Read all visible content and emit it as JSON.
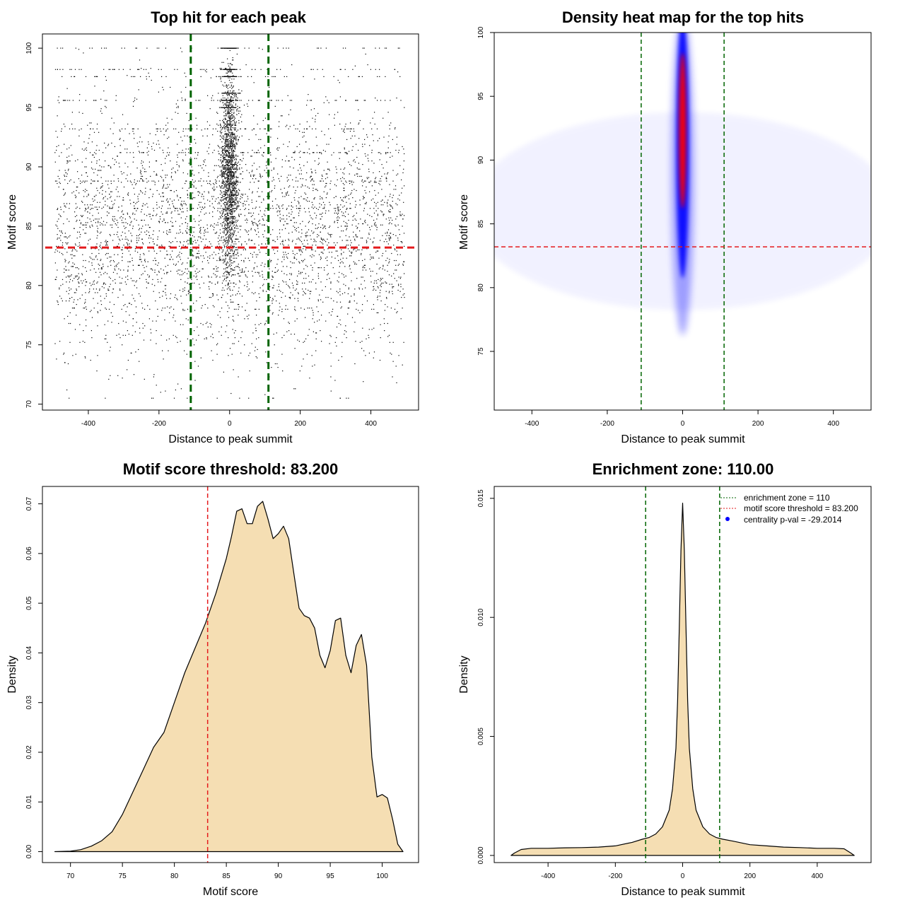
{
  "chart_data": [
    {
      "type": "scatter",
      "title": "Top hit for each peak",
      "xlabel": "Distance to peak summit",
      "ylabel": "Motif score",
      "xlim": [
        -530,
        535
      ],
      "ylim": [
        69.5,
        101.2
      ],
      "xticks": [
        -400,
        -200,
        0,
        200,
        400
      ],
      "yticks": [
        70,
        75,
        80,
        85,
        90,
        95,
        100
      ],
      "vlines": [
        -110,
        110
      ],
      "hline": 83.2,
      "colors": {
        "points": "#000000",
        "vline": "#006400",
        "hline": "#e41a1c"
      }
    },
    {
      "type": "heatmap",
      "title": "Density heat map for the top hits",
      "xlabel": "Distance to peak summit",
      "ylabel": "Motif score",
      "xlim": [
        -500,
        500
      ],
      "ylim": [
        70.4,
        100
      ],
      "xticks": [
        -400,
        -200,
        0,
        200,
        400
      ],
      "yticks": [
        75,
        80,
        85,
        90,
        95,
        100
      ],
      "vlines": [
        -110,
        110
      ],
      "hline": 83.2,
      "colors": {
        "low": "#ffffff",
        "mid": "#0000ff",
        "high": "#ff0000",
        "vline": "#006400",
        "hline": "#e41a1c"
      }
    },
    {
      "type": "area",
      "title": "Motif score threshold: 83.200",
      "xlabel": "Motif score",
      "ylabel": "Density",
      "xlim": [
        67.3,
        103.5
      ],
      "ylim": [
        -0.0022,
        0.0735
      ],
      "xticks": [
        70,
        75,
        80,
        85,
        90,
        95,
        100
      ],
      "yticks": [
        0.0,
        0.01,
        0.02,
        0.03,
        0.04,
        0.05,
        0.06,
        0.07
      ],
      "ytick_labels": [
        "0.00",
        "0.01",
        "0.02",
        "0.03",
        "0.04",
        "0.05",
        "0.06",
        "0.07"
      ],
      "vline": 83.2,
      "x": [
        68.5,
        70,
        71,
        72,
        73,
        74,
        75,
        76,
        77,
        78,
        79,
        80,
        81,
        82,
        83,
        84,
        85,
        85.5,
        86,
        86.5,
        87,
        87.5,
        88,
        88.5,
        89,
        89.5,
        90,
        90.5,
        91,
        91.5,
        92,
        92.5,
        93,
        93.5,
        94,
        94.5,
        95,
        95.5,
        96,
        96.5,
        97,
        97.5,
        98,
        98.5,
        99,
        99.5,
        100,
        100.5,
        101,
        101.5,
        102
      ],
      "y": [
        0.0,
        0.0001,
        0.0004,
        0.0011,
        0.0022,
        0.004,
        0.0075,
        0.012,
        0.0165,
        0.021,
        0.024,
        0.03,
        0.036,
        0.041,
        0.046,
        0.052,
        0.059,
        0.0635,
        0.0685,
        0.069,
        0.066,
        0.066,
        0.0695,
        0.0705,
        0.067,
        0.063,
        0.064,
        0.0655,
        0.063,
        0.056,
        0.049,
        0.0475,
        0.047,
        0.045,
        0.0395,
        0.037,
        0.0405,
        0.0465,
        0.047,
        0.0395,
        0.036,
        0.0415,
        0.0437,
        0.0375,
        0.019,
        0.011,
        0.0115,
        0.0108,
        0.0065,
        0.0015,
        0.0
      ],
      "colors": {
        "fill": "#f5deb3",
        "line": "#000000",
        "vline": "#e41a1c"
      }
    },
    {
      "type": "area",
      "title": "Enrichment zone: 110.00",
      "xlabel": "Distance to peak summit",
      "ylabel": "Density",
      "xlim": [
        -560,
        560
      ],
      "ylim": [
        -0.0003,
        0.0155
      ],
      "xticks": [
        -400,
        -200,
        0,
        200,
        400
      ],
      "yticks": [
        0.0,
        0.005,
        0.01,
        0.015
      ],
      "ytick_labels": [
        "0.000",
        "0.005",
        "0.010",
        "0.015"
      ],
      "vlines": [
        -110,
        110
      ],
      "x": [
        -510,
        -500,
        -480,
        -450,
        -400,
        -350,
        -300,
        -250,
        -200,
        -150,
        -120,
        -100,
        -80,
        -60,
        -40,
        -30,
        -20,
        -15,
        -10,
        -5,
        0,
        5,
        10,
        15,
        20,
        30,
        40,
        60,
        80,
        100,
        120,
        150,
        200,
        250,
        300,
        350,
        400,
        450,
        480,
        500,
        510
      ],
      "y": [
        0.0,
        0.0001,
        0.00025,
        0.0003,
        0.0003,
        0.00032,
        0.00033,
        0.00035,
        0.0004,
        0.00055,
        0.00068,
        0.00075,
        0.0009,
        0.0012,
        0.0019,
        0.0028,
        0.0045,
        0.0065,
        0.0095,
        0.0128,
        0.0148,
        0.0128,
        0.0095,
        0.0065,
        0.0045,
        0.0028,
        0.0019,
        0.0012,
        0.0009,
        0.00075,
        0.00068,
        0.0006,
        0.00045,
        0.0004,
        0.00035,
        0.00033,
        0.0003,
        0.0003,
        0.00028,
        0.0001,
        0.0
      ],
      "legend": [
        "enrichment zone = 110",
        "motif score threshold = 83.200",
        "centrality p-val = -29.2014"
      ],
      "colors": {
        "fill": "#f5deb3",
        "line": "#000000",
        "vline": "#006400",
        "legend_red": "#e41a1c",
        "legend_blue": "#0000ff"
      }
    }
  ]
}
